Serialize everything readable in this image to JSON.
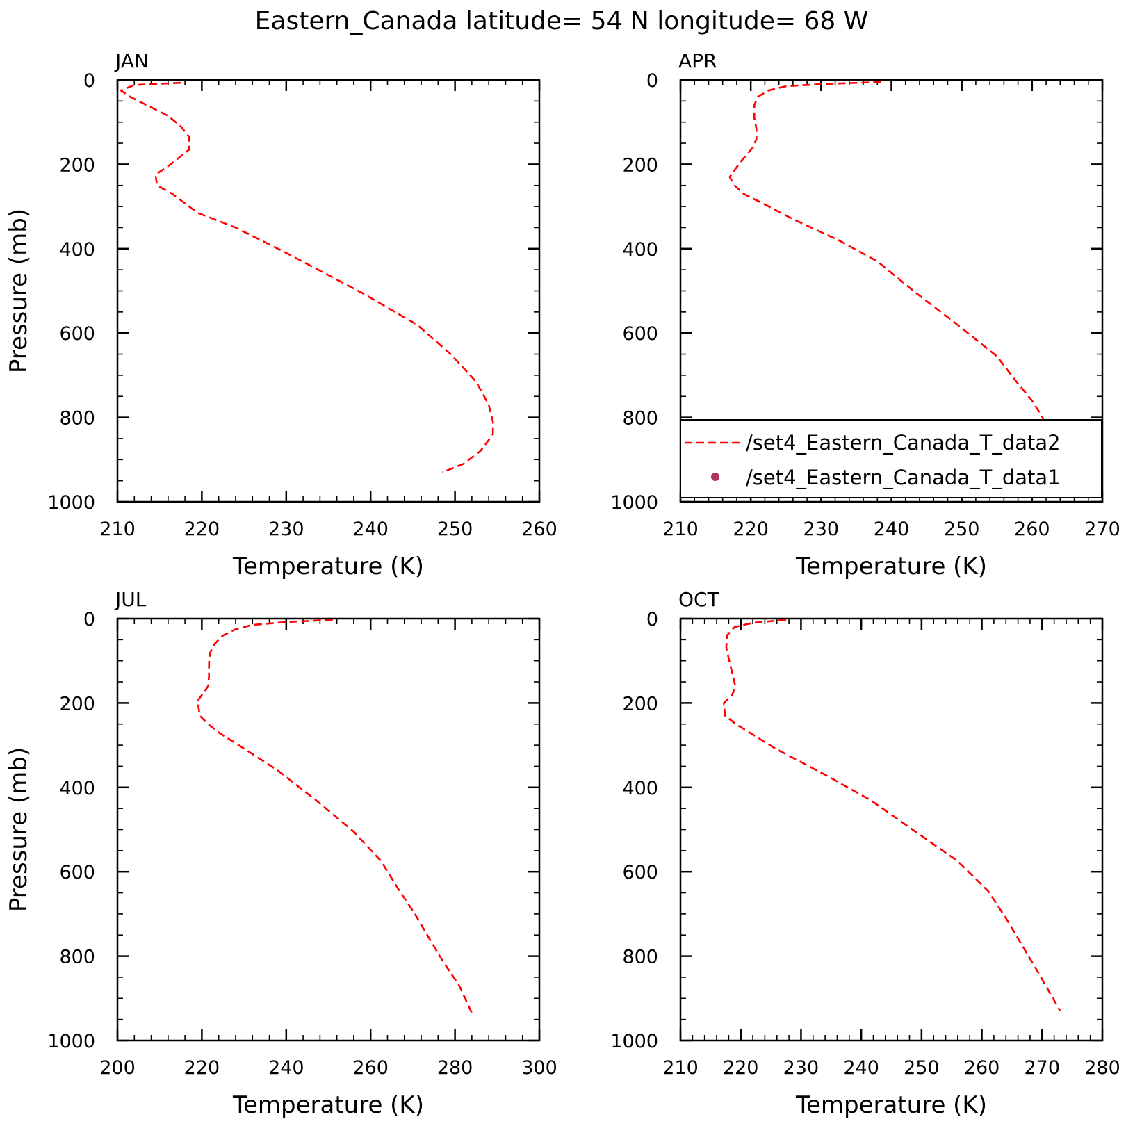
{
  "title": "Eastern_Canada  latitude= 54 N longitude= 68 W",
  "legend": {
    "entries": [
      {
        "label": "/set4_Eastern_Canada_T_data2",
        "style": "dashed-line",
        "color": "#ff0000"
      },
      {
        "label": "/set4_Eastern_Canada_T_data1",
        "style": "marker",
        "color": "#b03060"
      }
    ],
    "placement": "lower part of APR panel"
  },
  "chart_data": [
    {
      "type": "line",
      "title": "JAN",
      "xlabel": "Temperature (K)",
      "ylabel": "Pressure (mb)",
      "xlim": [
        210,
        260
      ],
      "ylim": [
        1000,
        0
      ],
      "x_ticks": [
        "210",
        "220",
        "230",
        "240",
        "250",
        "260"
      ],
      "y_ticks": [
        "0",
        "200",
        "400",
        "600",
        "800",
        "1000"
      ],
      "grid": false,
      "series": [
        {
          "line_style": "dashed",
          "color": "#ff0000",
          "x": [
            217.5,
            212,
            210.4,
            211.5,
            213.5,
            216,
            217.5,
            218.5,
            218.5,
            216.3,
            214.5,
            214.7,
            216.5,
            219.5,
            224,
            230,
            239,
            245.5,
            249.5,
            252.5,
            254,
            254.5,
            254.5,
            253,
            251,
            248.5
          ],
          "y": [
            7,
            12,
            25,
            40,
            60,
            85,
            110,
            135,
            165,
            200,
            225,
            250,
            270,
            315,
            350,
            410,
            505,
            580,
            650,
            715,
            770,
            810,
            840,
            880,
            910,
            930
          ]
        }
      ]
    },
    {
      "type": "line",
      "title": "APR",
      "xlabel": "Temperature (K)",
      "ylabel": "",
      "xlim": [
        210,
        270
      ],
      "ylim": [
        1000,
        0
      ],
      "x_ticks": [
        "210",
        "220",
        "230",
        "240",
        "250",
        "260",
        "270"
      ],
      "y_ticks": [
        "0",
        "200",
        "400",
        "600",
        "800",
        "1000"
      ],
      "grid": false,
      "series": [
        {
          "line_style": "dashed",
          "color": "#ff0000",
          "x": [
            238.5,
            230,
            225,
            222.5,
            221,
            220.5,
            220.5,
            220.8,
            220.8,
            220.3,
            218.5,
            217,
            217.7,
            219,
            222,
            226,
            232.5,
            238,
            243.5,
            249,
            252,
            255,
            258,
            260,
            261.5,
            262,
            262.5,
            264.5,
            265
          ],
          "y": [
            5,
            10,
            15,
            25,
            40,
            60,
            90,
            115,
            140,
            160,
            195,
            230,
            250,
            270,
            295,
            330,
            380,
            430,
            505,
            575,
            615,
            655,
            720,
            760,
            800,
            830,
            860,
            920,
            940
          ]
        }
      ]
    },
    {
      "type": "line",
      "title": "JUL",
      "xlabel": "Temperature (K)",
      "ylabel": "Pressure (mb)",
      "xlim": [
        200,
        300
      ],
      "ylim": [
        1000,
        0
      ],
      "x_ticks": [
        "200",
        "220",
        "240",
        "260",
        "280",
        "300"
      ],
      "y_ticks": [
        "0",
        "200",
        "400",
        "600",
        "800",
        "1000"
      ],
      "grid": false,
      "series": [
        {
          "line_style": "dashed",
          "color": "#ff0000",
          "x": [
            251,
            240,
            232,
            228,
            225,
            223,
            222,
            221.7,
            221.7,
            221.5,
            219,
            219.5,
            221.5,
            224,
            229.5,
            238,
            247,
            256,
            262.5,
            266.5,
            270.5,
            274,
            277,
            281,
            284
          ],
          "y": [
            3,
            8,
            15,
            25,
            40,
            60,
            80,
            105,
            135,
            160,
            195,
            230,
            250,
            270,
            305,
            360,
            430,
            505,
            575,
            640,
            700,
            760,
            810,
            870,
            935
          ]
        }
      ]
    },
    {
      "type": "line",
      "title": "OCT",
      "xlabel": "Temperature (K)",
      "ylabel": "",
      "xlim": [
        210,
        280
      ],
      "ylim": [
        1000,
        0
      ],
      "x_ticks": [
        "210",
        "220",
        "230",
        "240",
        "250",
        "260",
        "270",
        "280"
      ],
      "y_ticks": [
        "0",
        "200",
        "400",
        "600",
        "800",
        "1000"
      ],
      "grid": false,
      "series": [
        {
          "line_style": "dashed",
          "color": "#ff0000",
          "x": [
            227.5,
            222,
            219,
            217.7,
            217.6,
            218.1,
            218.6,
            219.1,
            218.6,
            217.2,
            217.4,
            219.2,
            222,
            226,
            234,
            241.5,
            249,
            256,
            261,
            264,
            266.5,
            269,
            271,
            273
          ],
          "y": [
            3,
            10,
            20,
            40,
            70,
            100,
            130,
            160,
            180,
            200,
            230,
            250,
            275,
            310,
            370,
            430,
            505,
            575,
            645,
            710,
            770,
            830,
            880,
            930
          ]
        }
      ]
    }
  ]
}
